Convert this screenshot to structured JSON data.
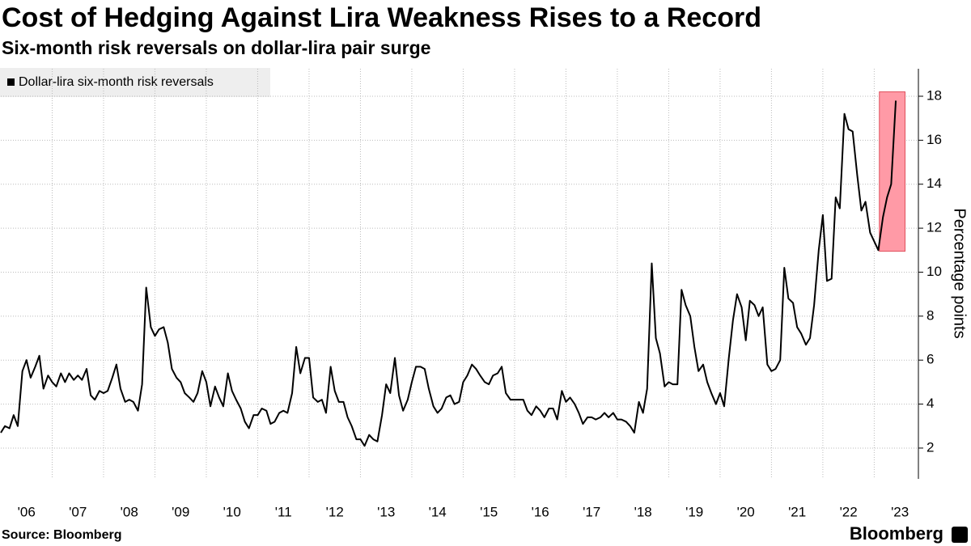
{
  "chart_data": {
    "type": "line",
    "title": "Cost of Hedging Against Lira Weakness Rises to a Record",
    "subtitle": "Six-month risk reversals on dollar-lira pair surge",
    "y_axis_label": "Percentage points",
    "source": "Source: Bloomberg",
    "logo": "Bloomberg",
    "legend": "top-left",
    "grid": true,
    "xlim": [
      2006,
      2023.86
    ],
    "ylim": [
      0.6,
      19.25
    ],
    "yticks": [
      2,
      4,
      6,
      8,
      10,
      12,
      14,
      16,
      18
    ],
    "xticks": [
      {
        "value": 2006,
        "label": "'06"
      },
      {
        "value": 2007,
        "label": "'07"
      },
      {
        "value": 2008,
        "label": "'08"
      },
      {
        "value": 2009,
        "label": "'09"
      },
      {
        "value": 2010,
        "label": "'10"
      },
      {
        "value": 2011,
        "label": "'11"
      },
      {
        "value": 2012,
        "label": "'12"
      },
      {
        "value": 2013,
        "label": "'13"
      },
      {
        "value": 2014,
        "label": "'14"
      },
      {
        "value": 2015,
        "label": "'15"
      },
      {
        "value": 2016,
        "label": "'16"
      },
      {
        "value": 2017,
        "label": "'17"
      },
      {
        "value": 2018,
        "label": "'18"
      },
      {
        "value": 2019,
        "label": "'19"
      },
      {
        "value": 2020,
        "label": "'20"
      },
      {
        "value": 2021,
        "label": "'21"
      },
      {
        "value": 2022,
        "label": "'22"
      },
      {
        "value": 2023,
        "label": "'23"
      }
    ],
    "highlight": {
      "x": [
        2023.1,
        2023.6
      ],
      "y": [
        10.95,
        18.2
      ],
      "color": "#ff9aa6",
      "border": "#e0505c"
    },
    "x": [
      2006.0,
      2006.08,
      2006.17,
      2006.25,
      2006.33,
      2006.42,
      2006.5,
      2006.58,
      2006.67,
      2006.75,
      2006.83,
      2006.92,
      2007.0,
      2007.08,
      2007.17,
      2007.25,
      2007.33,
      2007.42,
      2007.5,
      2007.58,
      2007.67,
      2007.75,
      2007.83,
      2007.92,
      2008.0,
      2008.08,
      2008.17,
      2008.25,
      2008.33,
      2008.42,
      2008.5,
      2008.58,
      2008.67,
      2008.75,
      2008.83,
      2008.92,
      2009.0,
      2009.08,
      2009.17,
      2009.25,
      2009.33,
      2009.42,
      2009.5,
      2009.58,
      2009.67,
      2009.75,
      2009.83,
      2009.92,
      2010.0,
      2010.08,
      2010.17,
      2010.25,
      2010.33,
      2010.42,
      2010.5,
      2010.58,
      2010.67,
      2010.75,
      2010.83,
      2010.92,
      2011.0,
      2011.08,
      2011.17,
      2011.25,
      2011.33,
      2011.42,
      2011.5,
      2011.58,
      2011.67,
      2011.75,
      2011.83,
      2011.92,
      2012.0,
      2012.08,
      2012.17,
      2012.25,
      2012.33,
      2012.42,
      2012.5,
      2012.58,
      2012.67,
      2012.75,
      2012.83,
      2012.92,
      2013.0,
      2013.08,
      2013.17,
      2013.25,
      2013.33,
      2013.42,
      2013.5,
      2013.58,
      2013.67,
      2013.75,
      2013.83,
      2013.92,
      2014.0,
      2014.08,
      2014.17,
      2014.25,
      2014.33,
      2014.42,
      2014.5,
      2014.58,
      2014.67,
      2014.75,
      2014.83,
      2014.92,
      2015.0,
      2015.08,
      2015.17,
      2015.25,
      2015.33,
      2015.42,
      2015.5,
      2015.58,
      2015.67,
      2015.75,
      2015.83,
      2015.92,
      2016.0,
      2016.08,
      2016.17,
      2016.25,
      2016.33,
      2016.42,
      2016.5,
      2016.58,
      2016.67,
      2016.75,
      2016.83,
      2016.92,
      2017.0,
      2017.08,
      2017.17,
      2017.25,
      2017.33,
      2017.42,
      2017.5,
      2017.58,
      2017.67,
      2017.75,
      2017.83,
      2017.92,
      2018.0,
      2018.08,
      2018.17,
      2018.25,
      2018.33,
      2018.42,
      2018.5,
      2018.58,
      2018.67,
      2018.75,
      2018.83,
      2018.92,
      2019.0,
      2019.08,
      2019.17,
      2019.25,
      2019.33,
      2019.42,
      2019.5,
      2019.58,
      2019.67,
      2019.75,
      2019.83,
      2019.92,
      2020.0,
      2020.08,
      2020.17,
      2020.25,
      2020.33,
      2020.42,
      2020.5,
      2020.58,
      2020.67,
      2020.75,
      2020.83,
      2020.92,
      2021.0,
      2021.08,
      2021.17,
      2021.25,
      2021.33,
      2021.42,
      2021.5,
      2021.58,
      2021.67,
      2021.75,
      2021.83,
      2021.92,
      2022.0,
      2022.08,
      2022.17,
      2022.25,
      2022.33,
      2022.42,
      2022.5,
      2022.58,
      2022.67,
      2022.75,
      2022.83,
      2022.92,
      2023.0,
      2023.08,
      2023.17,
      2023.25,
      2023.33,
      2023.42
    ],
    "series": [
      {
        "name": "Dollar-lira six-month risk reversals",
        "color": "#000000",
        "values": [
          2.7,
          3.0,
          2.9,
          3.5,
          3.0,
          5.5,
          6.0,
          5.2,
          5.7,
          6.2,
          4.7,
          5.3,
          5.0,
          4.8,
          5.4,
          5.0,
          5.4,
          5.1,
          5.3,
          5.1,
          5.6,
          4.4,
          4.2,
          4.6,
          4.5,
          4.6,
          5.2,
          5.8,
          4.7,
          4.1,
          4.2,
          4.1,
          3.7,
          4.9,
          9.3,
          7.5,
          7.1,
          7.4,
          7.5,
          6.8,
          5.6,
          5.2,
          5.0,
          4.5,
          4.3,
          4.1,
          4.5,
          5.5,
          5.0,
          3.9,
          4.8,
          4.3,
          3.9,
          5.4,
          4.6,
          4.2,
          3.8,
          3.2,
          2.9,
          3.5,
          3.5,
          3.8,
          3.7,
          3.1,
          3.2,
          3.6,
          3.7,
          3.6,
          4.5,
          6.6,
          5.4,
          6.1,
          6.1,
          4.3,
          4.1,
          4.2,
          3.6,
          5.7,
          4.6,
          4.1,
          4.1,
          3.4,
          3.0,
          2.4,
          2.4,
          2.1,
          2.6,
          2.4,
          2.3,
          3.5,
          4.9,
          4.5,
          6.1,
          4.4,
          3.7,
          4.2,
          5.0,
          5.7,
          5.7,
          5.6,
          4.7,
          3.9,
          3.6,
          3.8,
          4.3,
          4.4,
          4.0,
          4.1,
          5.0,
          5.3,
          5.8,
          5.6,
          5.3,
          5.0,
          4.9,
          5.3,
          5.4,
          5.7,
          4.5,
          4.2,
          4.2,
          4.2,
          4.2,
          3.7,
          3.5,
          3.9,
          3.7,
          3.4,
          3.8,
          3.8,
          3.3,
          4.6,
          4.1,
          4.3,
          4.0,
          3.6,
          3.1,
          3.4,
          3.4,
          3.3,
          3.4,
          3.6,
          3.4,
          3.6,
          3.3,
          3.3,
          3.2,
          3.0,
          2.7,
          4.1,
          3.6,
          4.7,
          10.4,
          7.0,
          6.3,
          4.8,
          5.0,
          4.9,
          4.9,
          9.2,
          8.5,
          8.0,
          6.6,
          5.5,
          5.8,
          5.0,
          4.5,
          4.0,
          4.5,
          3.9,
          6.1,
          7.8,
          9.0,
          8.4,
          6.9,
          8.7,
          8.5,
          8.0,
          8.4,
          5.8,
          5.5,
          5.6,
          6.0,
          10.2,
          8.8,
          8.6,
          7.5,
          7.2,
          6.7,
          7.0,
          8.5,
          11.0,
          12.6,
          9.6,
          9.7,
          13.4,
          12.9,
          17.2,
          16.5,
          16.4,
          14.4,
          12.8,
          13.2,
          11.8,
          11.4,
          11.0,
          12.5,
          13.4,
          14.0,
          17.8
        ]
      }
    ]
  }
}
